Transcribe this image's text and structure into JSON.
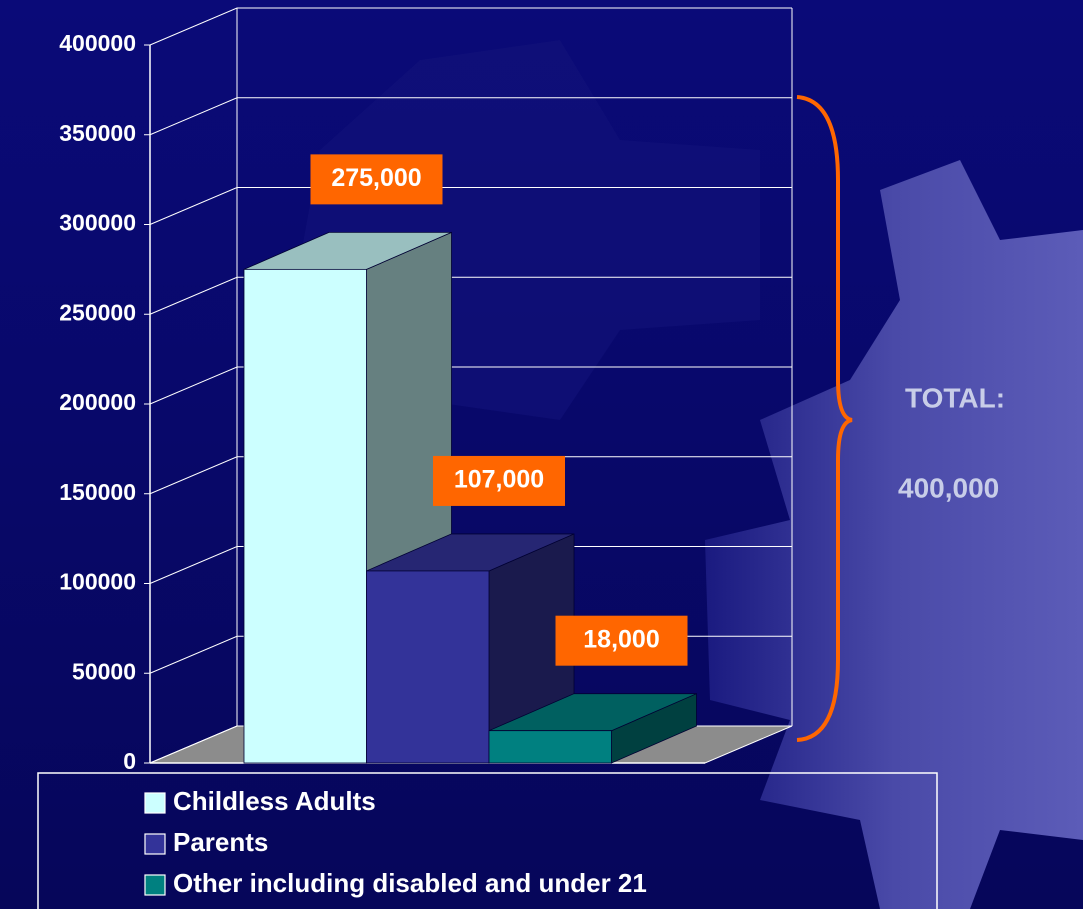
{
  "chart_data": {
    "type": "bar3d",
    "series": [
      {
        "name": "Childless Adults",
        "color": "#ccffff",
        "values": [
          275000
        ],
        "value_labels": [
          "275,000"
        ]
      },
      {
        "name": "Parents",
        "color": "#333399",
        "values": [
          107000
        ],
        "value_labels": [
          "107,000"
        ]
      },
      {
        "name": "Other including disabled and under 21",
        "color": "#008080",
        "values": [
          18000
        ],
        "value_labels": [
          "18,000"
        ]
      }
    ],
    "ylim": [
      0,
      400000
    ],
    "yticks": [
      0,
      50000,
      100000,
      150000,
      200000,
      250000,
      300000,
      350000,
      400000
    ],
    "grid": true,
    "label_color": "#ff6600",
    "annotations": [
      "TOTAL:",
      "400,000"
    ]
  }
}
